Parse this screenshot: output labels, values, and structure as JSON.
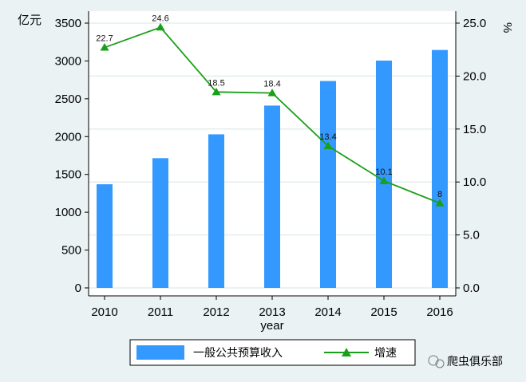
{
  "chart_data": {
    "type": "bar",
    "categories": [
      "2010",
      "2011",
      "2012",
      "2013",
      "2014",
      "2015",
      "2016"
    ],
    "series": [
      {
        "name": "一般公共预算收入",
        "type": "bar",
        "axis": "left",
        "color": "#3399FF",
        "values": [
          1370,
          1715,
          2030,
          2410,
          2735,
          3005,
          3145
        ]
      },
      {
        "name": "增速",
        "type": "line",
        "axis": "right",
        "color": "#1A9F1A",
        "marker": "triangle",
        "values": [
          22.7,
          24.6,
          18.5,
          18.4,
          13.4,
          10.1,
          8
        ],
        "data_labels": [
          "22.7",
          "24.6",
          "18.5",
          "18.4",
          "13.4",
          "10.1",
          "8"
        ]
      }
    ],
    "xlabel": "year",
    "ylabel_left": "亿元",
    "ylabel_right": "%",
    "ylim_left": [
      0,
      3500
    ],
    "ylim_right": [
      0,
      25
    ],
    "yticks_left": [
      "0",
      "500",
      "1000",
      "1500",
      "2000",
      "2500",
      "3000",
      "3500"
    ],
    "yticks_right": [
      "0.0",
      "5.0",
      "10.0",
      "15.0",
      "20.0",
      "25.0"
    ],
    "grid": true,
    "legend_position": "bottom"
  },
  "watermark": {
    "text": "爬虫俱乐部"
  }
}
